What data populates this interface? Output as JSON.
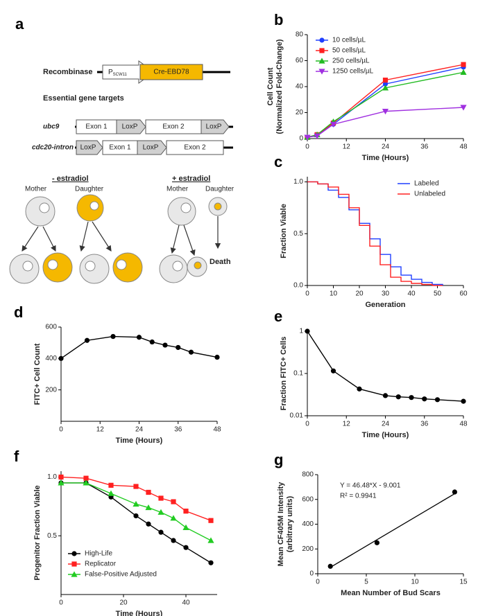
{
  "diagram": {
    "panel": "a",
    "recombinase": "Recombinase",
    "promoter": "P",
    "promoter_sub": "SCW11",
    "cre": "Cre-EBD78",
    "targets_title": "Essential gene targets",
    "genes": [
      {
        "name": "ubc9",
        "parts": [
          "Exon 1",
          "LoxP",
          "Exon 2",
          "LoxP"
        ]
      },
      {
        "name": "cdc20-intron",
        "parts": [
          "LoxP",
          "Exon 1",
          "LoxP",
          "Exon 2"
        ]
      }
    ],
    "minus": "- estradiol",
    "plus": "+ estradiol",
    "mother": "Mother",
    "daughter": "Daughter",
    "death": "Death"
  },
  "chart_data": [
    {
      "panel": "b",
      "type": "line",
      "x": [
        0,
        3,
        8,
        24,
        48
      ],
      "xlim": [
        0,
        48
      ],
      "ylim": [
        0,
        80
      ],
      "xticks": [
        0,
        12,
        24,
        36,
        48
      ],
      "yticks": [
        0,
        20,
        40,
        60,
        80
      ],
      "x_label": "Time (Hours)",
      "y_label": [
        "Cell Count",
        "(Normalized Fold-Change)"
      ],
      "legend": "upper left",
      "series": [
        {
          "name": "10 cells/µL",
          "color": "#1f3fff",
          "marker": "circle",
          "values": [
            1,
            3,
            11,
            42,
            55
          ]
        },
        {
          "name": "50 cells/µL",
          "color": "#ff2020",
          "marker": "square",
          "values": [
            1,
            3,
            12,
            45,
            57
          ]
        },
        {
          "name": "250 cells/µL",
          "color": "#22bb22",
          "marker": "triangle",
          "values": [
            1,
            3,
            13,
            39,
            51
          ]
        },
        {
          "name": "1250 cells/µL",
          "color": "#a030e0",
          "marker": "triangle-down",
          "values": [
            1,
            2,
            11,
            21,
            24
          ]
        }
      ]
    },
    {
      "panel": "c",
      "type": "step",
      "x": [
        0,
        4,
        8,
        12,
        16,
        20,
        24,
        28,
        32,
        36,
        40,
        44,
        48,
        52
      ],
      "xlim": [
        0,
        60
      ],
      "ylim": [
        0,
        1.05
      ],
      "xticks": [
        0,
        10,
        20,
        30,
        40,
        50,
        60
      ],
      "yticks": [
        {
          "value": 0,
          "label": "0.0"
        },
        {
          "value": 0.5,
          "label": "0.5"
        },
        {
          "value": 1,
          "label": "1.0"
        }
      ],
      "x_label": "Generation",
      "y_label": [
        "Fraction Viable"
      ],
      "legend": "upper right",
      "series": [
        {
          "name": "Labeled",
          "color": "#1f3fff",
          "values": [
            1,
            0.98,
            0.92,
            0.85,
            0.73,
            0.6,
            0.45,
            0.3,
            0.18,
            0.1,
            0.06,
            0.03,
            0.01,
            0
          ]
        },
        {
          "name": "Unlabeled",
          "color": "#ff2020",
          "values": [
            1,
            0.98,
            0.95,
            0.88,
            0.75,
            0.58,
            0.38,
            0.2,
            0.08,
            0.04,
            0.02,
            0.01,
            0,
            0
          ]
        }
      ]
    },
    {
      "panel": "d",
      "type": "line",
      "x": [
        0,
        8,
        16,
        24,
        28,
        32,
        36,
        40,
        48
      ],
      "xlim": [
        0,
        48
      ],
      "ylim": [
        0,
        600
      ],
      "xticks": [
        0,
        12,
        24,
        36,
        48
      ],
      "yticks": [
        200,
        400,
        600
      ],
      "x_label": "Time (Hours)",
      "y_label": [
        "FITC+ Cell Count"
      ],
      "series": [
        {
          "color": "#000000",
          "marker": "circle",
          "values": [
            400,
            515,
            540,
            535,
            505,
            485,
            470,
            440,
            408
          ]
        }
      ]
    },
    {
      "panel": "e",
      "type": "line",
      "x": [
        0,
        8,
        16,
        24,
        28,
        32,
        36,
        40,
        48
      ],
      "xlim": [
        0,
        48
      ],
      "ylim": [
        0.01,
        1
      ],
      "log_y": true,
      "xticks": [
        0,
        12,
        24,
        36,
        48
      ],
      "yticks": [
        0.01,
        0.1,
        1
      ],
      "x_label": "Time (Hours)",
      "y_label": [
        "Fraction FITC+ Cells"
      ],
      "series": [
        {
          "color": "#000000",
          "marker": "circle",
          "values": [
            1,
            0.115,
            0.043,
            0.03,
            0.028,
            0.027,
            0.025,
            0.024,
            0.022
          ]
        }
      ]
    },
    {
      "panel": "f",
      "type": "line",
      "x": [
        0,
        8,
        16,
        24,
        28,
        32,
        36,
        40,
        48
      ],
      "xlim": [
        0,
        50
      ],
      "ylim": [
        0,
        1.05
      ],
      "xticks": [
        0,
        20,
        40
      ],
      "yticks": [
        {
          "value": 0.5,
          "label": "0.5"
        },
        {
          "value": 1,
          "label": "1.0"
        }
      ],
      "x_label": "Time  (Hours)",
      "y_label": [
        "Progenitor  Fraction  Viable"
      ],
      "legend": "lower left",
      "series": [
        {
          "name": "High-Life",
          "color": "#000000",
          "marker": "circle",
          "values": [
            0.95,
            0.95,
            0.83,
            0.67,
            0.6,
            0.53,
            0.46,
            0.4,
            0.27
          ]
        },
        {
          "name": "Replicator",
          "color": "#ff2020",
          "marker": "square",
          "values": [
            1,
            0.99,
            0.93,
            0.92,
            0.87,
            0.82,
            0.79,
            0.71,
            0.63
          ]
        },
        {
          "name": "False-Positive Adjusted",
          "color": "#22cc22",
          "marker": "triangle",
          "values": [
            0.95,
            0.95,
            0.86,
            0.77,
            0.74,
            0.7,
            0.65,
            0.57,
            0.46
          ]
        }
      ]
    },
    {
      "panel": "g",
      "type": "scatter",
      "x": [
        1.3,
        6.1,
        14.1
      ],
      "xlim": [
        0,
        15
      ],
      "ylim": [
        0,
        800
      ],
      "xticks": [
        0,
        5,
        10,
        15
      ],
      "yticks": [
        0,
        200,
        400,
        600,
        800
      ],
      "x_label": "Mean Number of Bud Scars",
      "y_label": [
        "Mean CF405M Intensity",
        "(arbitrary units)"
      ],
      "annotations": [
        "Y = 46.48*X - 9.001",
        "R² = 0.9941"
      ],
      "series": [
        {
          "color": "#000000",
          "marker": "circle",
          "values": [
            60,
            250,
            660
          ]
        }
      ],
      "fit_line": {
        "x": [
          1.2,
          14.2
        ],
        "values": [
          47,
          651
        ],
        "color": "#000000"
      }
    }
  ]
}
